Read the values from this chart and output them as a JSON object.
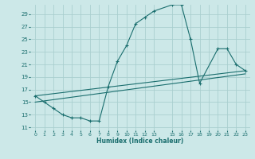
{
  "xlabel": "Humidex (Indice chaleur)",
  "bg_color": "#cce8e8",
  "grid_color": "#aacfcf",
  "line_color": "#1a6e6e",
  "xlim": [
    -0.5,
    23.5
  ],
  "ylim": [
    10.5,
    30.5
  ],
  "yticks": [
    11,
    13,
    15,
    17,
    19,
    21,
    23,
    25,
    27,
    29
  ],
  "xticks": [
    0,
    1,
    2,
    3,
    4,
    5,
    6,
    7,
    8,
    9,
    10,
    11,
    12,
    13,
    15,
    16,
    17,
    18,
    19,
    20,
    21,
    22,
    23
  ],
  "xtick_labels": [
    "0",
    "1",
    "2",
    "3",
    "4",
    "5",
    "6",
    "7",
    "8",
    "9",
    "10",
    "11",
    "12",
    "13",
    "15",
    "16",
    "17",
    "18",
    "19",
    "20",
    "21",
    "22",
    "23"
  ],
  "curve1_x": [
    0,
    1,
    2,
    3,
    4,
    5,
    6,
    7,
    8,
    9,
    10,
    11,
    12,
    13,
    15,
    16,
    17,
    18,
    20,
    21,
    22,
    23
  ],
  "curve1_y": [
    16,
    15,
    14,
    13,
    12.5,
    12.5,
    12,
    12,
    17.5,
    21.5,
    24,
    27.5,
    28.5,
    29.5,
    30.5,
    30.5,
    25,
    18,
    23.5,
    23.5,
    21,
    20
  ],
  "curve2_x": [
    0,
    23
  ],
  "curve2_y": [
    16,
    20
  ],
  "curve3_x": [
    0,
    23
  ],
  "curve3_y": [
    15,
    19.5
  ]
}
